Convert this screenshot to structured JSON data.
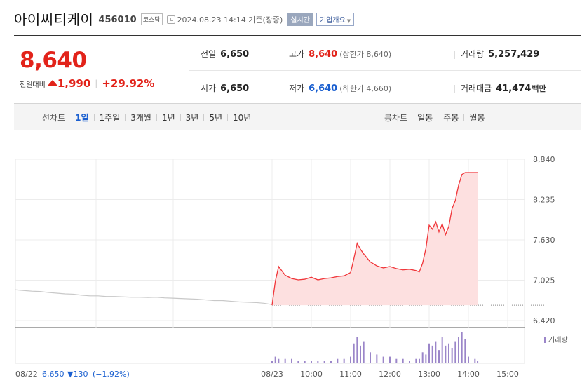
{
  "header": {
    "name": "아이씨티케이",
    "code": "456010",
    "market": "코스닥",
    "datetime": "2024.08.23 14:14 기준(장중)",
    "realtime_label": "실시간",
    "company_label": "기업개요"
  },
  "quote": {
    "price": "8,640",
    "change_label": "전일대비",
    "change": "1,990",
    "change_pct": "+29.92%",
    "prev_close_label": "전일",
    "prev_close": "6,650",
    "high_label": "고가",
    "high": "8,640",
    "upper_limit": "(상한가 8,640)",
    "volume_label": "거래량",
    "volume": "5,257,429",
    "open_label": "시가",
    "open": "6,650",
    "low_label": "저가",
    "low": "6,640",
    "lower_limit": "(하한가 4,660)",
    "amount_label": "거래대금",
    "amount": "41,474",
    "amount_unit": "백만"
  },
  "tabs": {
    "line_label": "선차트",
    "line_items": [
      "1일",
      "1주일",
      "3개월",
      "1년",
      "3년",
      "5년",
      "10년"
    ],
    "candle_label": "봉차트",
    "candle_items": [
      "일봉",
      "주봉",
      "월봉"
    ]
  },
  "chart_data": {
    "type": "line",
    "y_ticks": [
      "8,840",
      "8,235",
      "7,630",
      "7,025",
      "6,420"
    ],
    "ylim": [
      6420,
      8840
    ],
    "x_ticks": [
      "08/23",
      "10:00",
      "11:00",
      "12:00",
      "13:00",
      "14:00",
      "15:00"
    ],
    "volume_label": "거래량",
    "prev_day_label": "08/22",
    "prev_day_close": "6,650",
    "prev_day_change": "▼130",
    "prev_day_pct": "(−1.92%)",
    "prev_day_series": {
      "name": "08/22",
      "values": [
        6880,
        6870,
        6860,
        6855,
        6840,
        6830,
        6820,
        6815,
        6800,
        6790,
        6790,
        6780,
        6780,
        6775,
        6770,
        6770,
        6765,
        6770,
        6760,
        6755,
        6750,
        6745,
        6740,
        6730,
        6720,
        6720,
        6710,
        6700,
        6695,
        6690,
        6680,
        6660
      ]
    },
    "today_series": {
      "name": "08/23",
      "x": [
        "09:00",
        "09:05",
        "09:10",
        "09:20",
        "09:30",
        "09:40",
        "09:50",
        "10:00",
        "10:10",
        "10:20",
        "10:30",
        "10:40",
        "10:50",
        "11:00",
        "11:05",
        "11:10",
        "11:15",
        "11:20",
        "11:30",
        "11:40",
        "11:50",
        "12:00",
        "12:10",
        "12:20",
        "12:30",
        "12:40",
        "12:45",
        "12:50",
        "12:55",
        "13:00",
        "13:05",
        "13:10",
        "13:15",
        "13:20",
        "13:25",
        "13:30",
        "13:35",
        "13:40",
        "13:45",
        "13:50",
        "13:55",
        "14:00",
        "14:10",
        "14:14"
      ],
      "values": [
        6650,
        7010,
        7230,
        7100,
        7050,
        7030,
        7040,
        7070,
        7030,
        7050,
        7060,
        7080,
        7090,
        7140,
        7350,
        7580,
        7490,
        7420,
        7300,
        7240,
        7210,
        7230,
        7200,
        7180,
        7190,
        7170,
        7150,
        7280,
        7500,
        7850,
        7790,
        7900,
        7750,
        7870,
        7710,
        7830,
        8100,
        8220,
        8450,
        8610,
        8640,
        8640,
        8640,
        8640
      ]
    },
    "volume_today": [
      1,
      3,
      2,
      2,
      2,
      1,
      1,
      1,
      1,
      1,
      1,
      2,
      2,
      3,
      9,
      12,
      8,
      10,
      5,
      4,
      3,
      3,
      2,
      2,
      1,
      2,
      2,
      5,
      4,
      9,
      8,
      10,
      6,
      12,
      8,
      9,
      7,
      10,
      12,
      14,
      11,
      3,
      2,
      1
    ]
  },
  "colors": {
    "up": "#e2231a",
    "down": "#1a5fd0",
    "today_line": "#f0363a",
    "today_fill": "#fde0e0",
    "prev_line": "#c8c8c8",
    "volume": "#9b86c9"
  }
}
